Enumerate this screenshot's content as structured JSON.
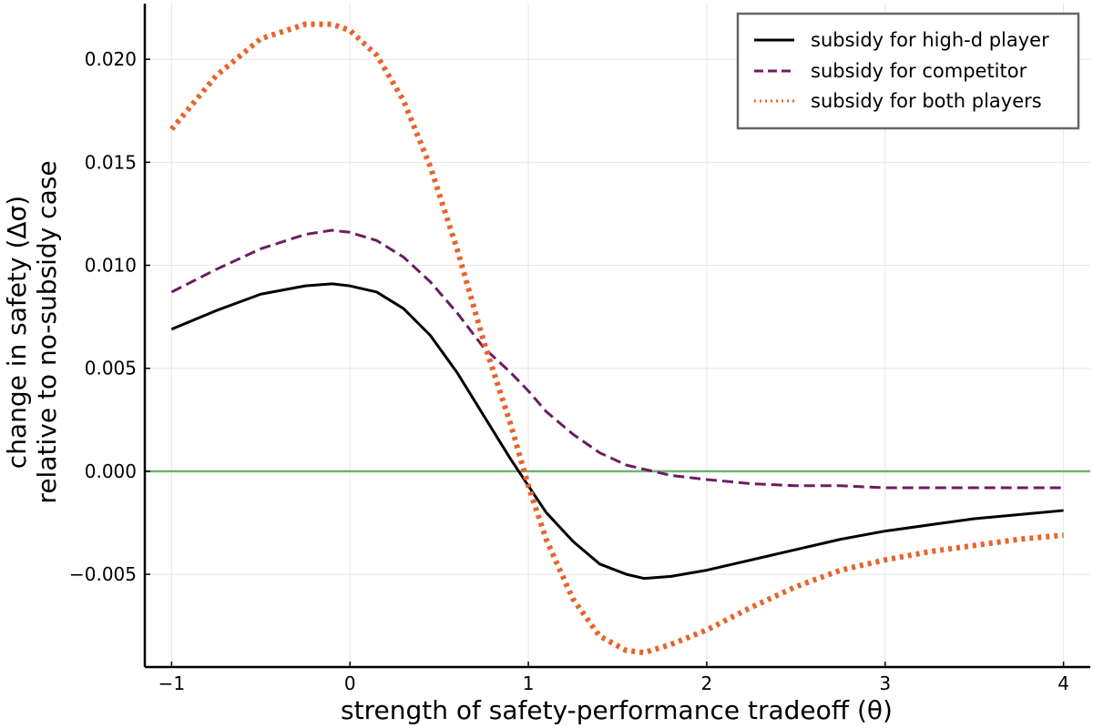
{
  "chart_data": {
    "type": "line",
    "title": "",
    "xlabel": "strength of safety-performance tradeoff (θ)",
    "ylabel_line1": "change in safety (Δσ)",
    "ylabel_line2": "relative to no-subsidy case",
    "xlim": [
      -1.15,
      4.15
    ],
    "ylim": [
      -0.0095,
      0.0227
    ],
    "xticks": [
      -1,
      0,
      1,
      2,
      3,
      4
    ],
    "xtick_labels": [
      "−1",
      "0",
      "1",
      "2",
      "3",
      "4"
    ],
    "yticks": [
      -0.005,
      0.0,
      0.005,
      0.01,
      0.015,
      0.02
    ],
    "ytick_labels": [
      "−0.005",
      "0.000",
      "0.005",
      "0.010",
      "0.015",
      "0.020"
    ],
    "grid": true,
    "legend_position": "top-right",
    "reference_line": {
      "y": 0.0,
      "color": "#72b372"
    },
    "x": [
      -1.0,
      -0.75,
      -0.5,
      -0.25,
      -0.1,
      0.0,
      0.15,
      0.3,
      0.45,
      0.6,
      0.75,
      0.9,
      1.0,
      1.1,
      1.25,
      1.4,
      1.55,
      1.65,
      1.8,
      2.0,
      2.25,
      2.5,
      2.75,
      3.0,
      3.25,
      3.5,
      3.75,
      4.0
    ],
    "series": [
      {
        "name": "subsidy for high-d player",
        "color": "#000000",
        "dash": "solid",
        "values": [
          0.0069,
          0.0078,
          0.0086,
          0.009,
          0.0091,
          0.009,
          0.0087,
          0.0079,
          0.0066,
          0.0048,
          0.0027,
          0.0006,
          -0.0007,
          -0.002,
          -0.0034,
          -0.0045,
          -0.005,
          -0.0052,
          -0.0051,
          -0.0048,
          -0.0043,
          -0.0038,
          -0.0033,
          -0.0029,
          -0.0026,
          -0.0023,
          -0.0021,
          -0.0019
        ]
      },
      {
        "name": "subsidy for competitor",
        "color": "#6b1d62",
        "dash": "dashed",
        "values": [
          0.0087,
          0.0098,
          0.0108,
          0.0115,
          0.0117,
          0.0116,
          0.0112,
          0.0104,
          0.0092,
          0.0077,
          0.006,
          0.0048,
          0.0039,
          0.0029,
          0.0018,
          0.0009,
          0.0003,
          0.0001,
          -0.0002,
          -0.0004,
          -0.0006,
          -0.0007,
          -0.0007,
          -0.0008,
          -0.0008,
          -0.0008,
          -0.0008,
          -0.0008
        ]
      },
      {
        "name": "subsidy for both players",
        "color": "#e8642c",
        "dash": "dotted",
        "values": [
          0.0166,
          0.0192,
          0.021,
          0.0217,
          0.0217,
          0.0214,
          0.0202,
          0.018,
          0.0148,
          0.0108,
          0.0063,
          0.0023,
          -0.0007,
          -0.0033,
          -0.0062,
          -0.008,
          -0.0087,
          -0.0088,
          -0.0084,
          -0.0077,
          -0.0066,
          -0.0056,
          -0.0048,
          -0.0043,
          -0.0039,
          -0.0036,
          -0.0033,
          -0.0031
        ]
      }
    ]
  }
}
